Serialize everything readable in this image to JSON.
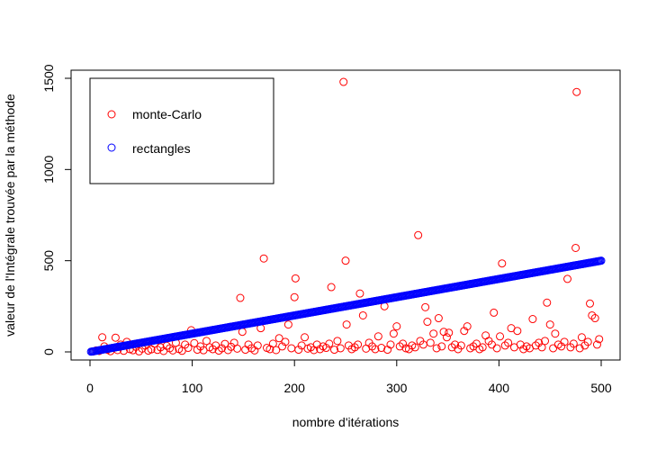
{
  "chart_data": {
    "type": "scatter",
    "title": "",
    "xlabel": "nombre d'itérations",
    "ylabel": "valeur de l'Intégrale trouvée par la méthode",
    "xlim": [
      0,
      500
    ],
    "ylim": [
      0,
      1500
    ],
    "x_ticks": [
      0,
      100,
      200,
      300,
      400,
      500
    ],
    "y_ticks": [
      0,
      500,
      1000,
      1500
    ],
    "grid": false,
    "legend_position": "top-left",
    "series": [
      {
        "name": "monte-Carlo",
        "color": "#ff0000",
        "marker": "open-circle",
        "points": [
          [
            3,
            2
          ],
          [
            6,
            8
          ],
          [
            9,
            5
          ],
          [
            12,
            80
          ],
          [
            14,
            30
          ],
          [
            17,
            12
          ],
          [
            20,
            4
          ],
          [
            23,
            22
          ],
          [
            25,
            78
          ],
          [
            27,
            10
          ],
          [
            30,
            40
          ],
          [
            33,
            6
          ],
          [
            36,
            55
          ],
          [
            39,
            15
          ],
          [
            42,
            9
          ],
          [
            45,
            28
          ],
          [
            48,
            3
          ],
          [
            51,
            18
          ],
          [
            54,
            35
          ],
          [
            57,
            7
          ],
          [
            60,
            14
          ],
          [
            63,
            45
          ],
          [
            66,
            11
          ],
          [
            69,
            25
          ],
          [
            72,
            5
          ],
          [
            75,
            33
          ],
          [
            78,
            20
          ],
          [
            81,
            8
          ],
          [
            84,
            50
          ],
          [
            87,
            16
          ],
          [
            90,
            6
          ],
          [
            93,
            40
          ],
          [
            96,
            22
          ],
          [
            99,
            119
          ],
          [
            102,
            48
          ],
          [
            105,
            12
          ],
          [
            108,
            30
          ],
          [
            111,
            9
          ],
          [
            114,
            60
          ],
          [
            117,
            25
          ],
          [
            120,
            15
          ],
          [
            123,
            35
          ],
          [
            126,
            7
          ],
          [
            129,
            20
          ],
          [
            132,
            44
          ],
          [
            135,
            10
          ],
          [
            138,
            28
          ],
          [
            141,
            50
          ],
          [
            144,
            18
          ],
          [
            147,
            296
          ],
          [
            149,
            110
          ],
          [
            152,
            12
          ],
          [
            155,
            40
          ],
          [
            158,
            20
          ],
          [
            161,
            8
          ],
          [
            164,
            35
          ],
          [
            167,
            130
          ],
          [
            170,
            512
          ],
          [
            173,
            22
          ],
          [
            176,
            15
          ],
          [
            179,
            45
          ],
          [
            182,
            10
          ],
          [
            185,
            75
          ],
          [
            188,
            30
          ],
          [
            191,
            55
          ],
          [
            194,
            150
          ],
          [
            197,
            20
          ],
          [
            200,
            300
          ],
          [
            201,
            403
          ],
          [
            204,
            12
          ],
          [
            207,
            35
          ],
          [
            210,
            80
          ],
          [
            213,
            18
          ],
          [
            216,
            25
          ],
          [
            219,
            10
          ],
          [
            222,
            40
          ],
          [
            225,
            15
          ],
          [
            228,
            30
          ],
          [
            231,
            22
          ],
          [
            234,
            45
          ],
          [
            236,
            355
          ],
          [
            239,
            12
          ],
          [
            242,
            60
          ],
          [
            245,
            20
          ],
          [
            248,
            1480
          ],
          [
            250,
            500
          ],
          [
            251,
            150
          ],
          [
            253,
            35
          ],
          [
            256,
            15
          ],
          [
            259,
            25
          ],
          [
            262,
            40
          ],
          [
            264,
            320
          ],
          [
            267,
            200
          ],
          [
            270,
            18
          ],
          [
            273,
            50
          ],
          [
            276,
            30
          ],
          [
            279,
            15
          ],
          [
            282,
            85
          ],
          [
            285,
            22
          ],
          [
            288,
            250
          ],
          [
            291,
            12
          ],
          [
            294,
            40
          ],
          [
            297,
            100
          ],
          [
            300,
            140
          ],
          [
            303,
            30
          ],
          [
            306,
            45
          ],
          [
            309,
            20
          ],
          [
            312,
            15
          ],
          [
            315,
            35
          ],
          [
            318,
            25
          ],
          [
            321,
            640
          ],
          [
            323,
            60
          ],
          [
            326,
            40
          ],
          [
            328,
            245
          ],
          [
            330,
            165
          ],
          [
            333,
            50
          ],
          [
            336,
            100
          ],
          [
            339,
            20
          ],
          [
            341,
            185
          ],
          [
            344,
            30
          ],
          [
            346,
            110
          ],
          [
            349,
            80
          ],
          [
            351,
            105
          ],
          [
            354,
            25
          ],
          [
            357,
            40
          ],
          [
            360,
            15
          ],
          [
            363,
            35
          ],
          [
            366,
            115
          ],
          [
            369,
            140
          ],
          [
            372,
            20
          ],
          [
            375,
            30
          ],
          [
            378,
            45
          ],
          [
            381,
            15
          ],
          [
            384,
            25
          ],
          [
            387,
            90
          ],
          [
            390,
            60
          ],
          [
            393,
            40
          ],
          [
            395,
            215
          ],
          [
            398,
            20
          ],
          [
            401,
            85
          ],
          [
            403,
            485
          ],
          [
            406,
            35
          ],
          [
            409,
            50
          ],
          [
            412,
            130
          ],
          [
            415,
            25
          ],
          [
            418,
            115
          ],
          [
            421,
            40
          ],
          [
            424,
            15
          ],
          [
            427,
            30
          ],
          [
            430,
            20
          ],
          [
            433,
            180
          ],
          [
            436,
            35
          ],
          [
            439,
            50
          ],
          [
            442,
            25
          ],
          [
            445,
            60
          ],
          [
            447,
            270
          ],
          [
            450,
            150
          ],
          [
            453,
            20
          ],
          [
            455,
            100
          ],
          [
            458,
            40
          ],
          [
            461,
            30
          ],
          [
            464,
            55
          ],
          [
            467,
            400
          ],
          [
            470,
            25
          ],
          [
            473,
            45
          ],
          [
            475,
            570
          ],
          [
            476,
            1425
          ],
          [
            479,
            20
          ],
          [
            481,
            80
          ],
          [
            484,
            35
          ],
          [
            487,
            55
          ],
          [
            489,
            265
          ],
          [
            491,
            200
          ],
          [
            494,
            185
          ],
          [
            496,
            40
          ],
          [
            498,
            70
          ]
        ]
      },
      {
        "name": "rectangles",
        "color": "#0000ff",
        "marker": "open-circle",
        "relation": "y = x",
        "x_from": 1,
        "x_to": 500,
        "x_step": 1
      }
    ]
  }
}
